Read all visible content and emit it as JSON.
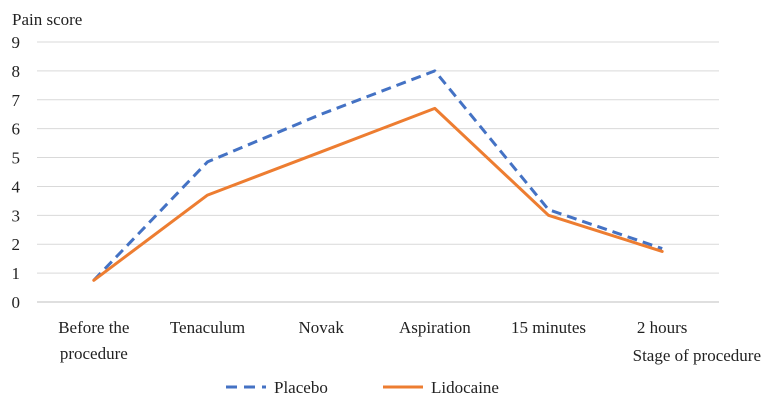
{
  "chart_data": {
    "type": "line",
    "title": "",
    "ylabel": "Pain score",
    "xlabel": "Stage of procedure",
    "ylim": [
      0,
      9
    ],
    "y_ticks": [
      0,
      1,
      2,
      3,
      4,
      5,
      6,
      7,
      8,
      9
    ],
    "grid": true,
    "legend_position": "bottom",
    "categories": [
      [
        "Before the",
        "procedure"
      ],
      [
        "Tenaculum"
      ],
      [
        "Novak"
      ],
      [
        "Aspiration"
      ],
      [
        "15 minutes"
      ],
      [
        "2 hours"
      ]
    ],
    "series": [
      {
        "name": "Placebo",
        "values": [
          0.75,
          4.85,
          6.5,
          8.0,
          3.2,
          1.85
        ],
        "color": "#4472C4",
        "dash": true
      },
      {
        "name": "Lidocaine",
        "values": [
          0.75,
          3.7,
          5.2,
          6.7,
          3.0,
          1.75
        ],
        "color": "#ED7D31",
        "dash": false
      }
    ]
  }
}
